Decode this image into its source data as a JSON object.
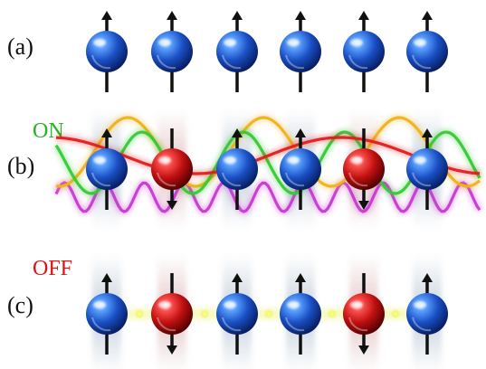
{
  "panels": [
    {
      "label": "(a)",
      "spins": [
        "up",
        "up",
        "up",
        "up",
        "up",
        "up"
      ]
    },
    {
      "label": "(b)",
      "state": "ON",
      "spins": [
        "up",
        "down",
        "up",
        "up",
        "down",
        "up"
      ]
    },
    {
      "label": "(c)",
      "state": "OFF",
      "spins": [
        "up",
        "down",
        "up",
        "up",
        "down",
        "up"
      ]
    }
  ],
  "colors": {
    "spin_up_ball": "#1f5fd6",
    "spin_down_ball": "#cc1111",
    "on_text": "#22b322",
    "off_text": "#dd1111",
    "wave_orange": "#f0b21a",
    "wave_green": "#35c935",
    "wave_red": "#e21c1c",
    "wave_magenta": "#c63ad0",
    "bond_glow": "#e9f24a"
  }
}
